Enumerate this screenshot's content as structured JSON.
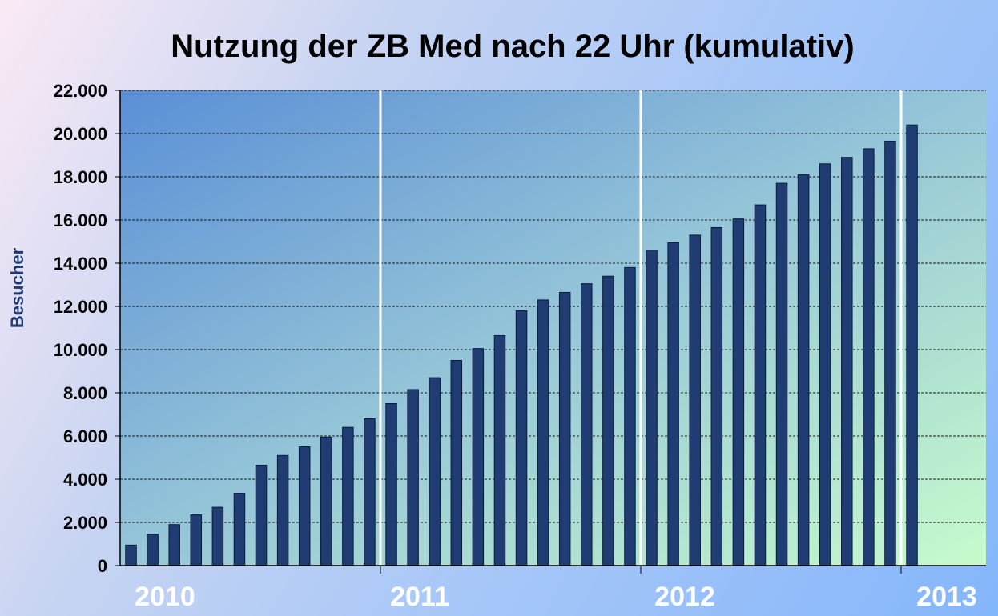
{
  "chart_data": {
    "type": "bar",
    "title": "Nutzung der ZB Med nach 22 Uhr (kumulativ)",
    "ylabel": "Besucher",
    "xlabel": "",
    "ylim": [
      0,
      22000
    ],
    "yticks": [
      "0",
      "2.000",
      "4.000",
      "6.000",
      "8.000",
      "10.000",
      "12.000",
      "14.000",
      "16.000",
      "18.000",
      "20.000",
      "22.000"
    ],
    "year_labels": [
      "2010",
      "2011",
      "2012",
      "2013"
    ],
    "bars_per_year": 12,
    "grid": "horizontal dashed",
    "colors": {
      "bar": "#1f3d73",
      "bar_stroke": "#0b1a3a",
      "year_separator": "#ffffff",
      "plot_bg_top_left": "#5b8fd6",
      "plot_bg_bottom_right": "#c7fbcc"
    },
    "series": [
      {
        "values": [
          950,
          1450,
          1900,
          2350,
          2700,
          3350,
          4650,
          5100,
          5500,
          5950,
          6400,
          6800,
          7500,
          8150,
          8700,
          9500,
          10050,
          10650,
          11800,
          12300,
          12650,
          13050,
          13400,
          13800,
          14600,
          14950,
          15300,
          15650,
          16050,
          16700,
          17700,
          18100,
          18600,
          18900,
          19300,
          19650,
          20400
        ]
      }
    ]
  }
}
